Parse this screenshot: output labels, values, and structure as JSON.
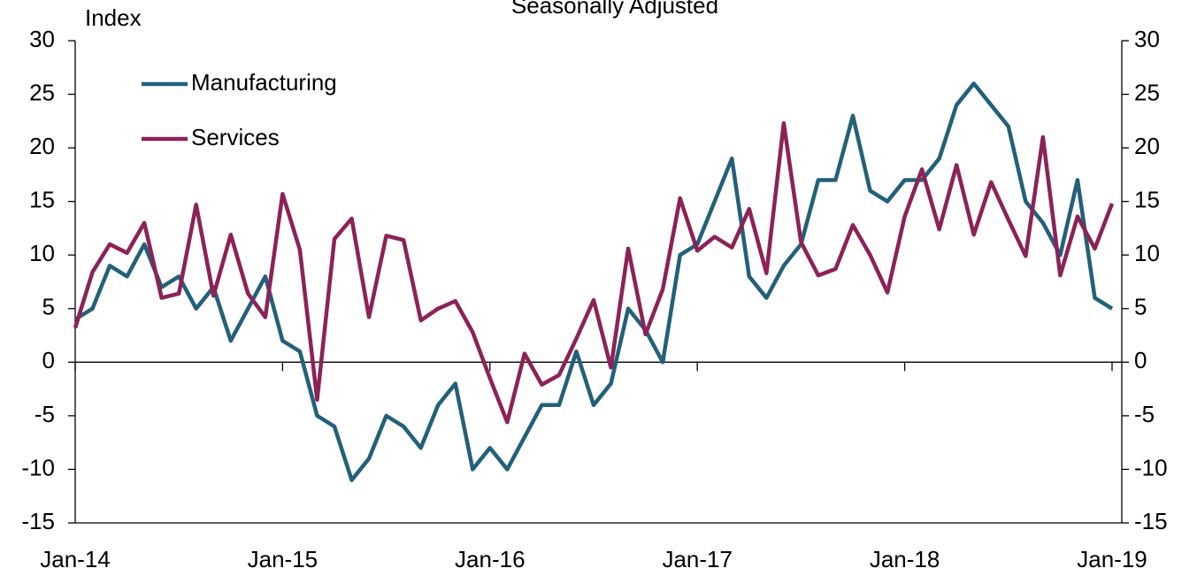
{
  "chart_data": {
    "type": "line",
    "subtitle": "Seasonally Adjusted",
    "y_label": "Index",
    "categories": [
      "Jan-14",
      null,
      null,
      null,
      null,
      null,
      null,
      null,
      null,
      null,
      null,
      null,
      "Jan-15",
      null,
      null,
      null,
      null,
      null,
      null,
      null,
      null,
      null,
      null,
      null,
      "Jan-16",
      null,
      null,
      null,
      null,
      null,
      null,
      null,
      null,
      null,
      null,
      null,
      "Jan-17",
      null,
      null,
      null,
      null,
      null,
      null,
      null,
      null,
      null,
      null,
      null,
      "Jan-18",
      null,
      null,
      null,
      null,
      null,
      null,
      null,
      null,
      null,
      null,
      null,
      "Jan-19"
    ],
    "series": [
      {
        "name": "Manufacturing",
        "color": "#23607a",
        "values": [
          4,
          5,
          9,
          8,
          11,
          7,
          8,
          5,
          7,
          2,
          5,
          8,
          2,
          1,
          -5,
          -6,
          -11,
          -9,
          -5,
          -6,
          -8,
          -4,
          -2,
          -10,
          -8,
          -10,
          -7,
          -4,
          -4,
          1,
          -4,
          -2,
          5,
          3,
          0,
          10,
          11,
          15,
          19,
          8,
          6,
          9,
          11,
          17,
          17,
          23,
          16,
          15,
          17,
          17,
          19,
          24,
          26,
          24,
          22,
          15,
          13,
          10,
          17,
          6,
          5
        ]
      },
      {
        "name": "Services",
        "color": "#8c2257",
        "values": [
          3.2,
          8.4,
          11,
          10.2,
          13,
          6,
          6.4,
          14.7,
          6.2,
          11.9,
          6.4,
          4.2,
          15.7,
          10.5,
          -3.5,
          11.5,
          13.4,
          4.2,
          11.8,
          11.4,
          3.9,
          5,
          5.7,
          2.8,
          -1.5,
          -5.6,
          0.8,
          -2.1,
          -1.2,
          2.2,
          5.8,
          -0.5,
          10.6,
          2.6,
          6.8,
          15.3,
          10.4,
          11.7,
          10.7,
          14.3,
          8.3,
          22.3,
          11.2,
          8.1,
          8.7,
          12.8,
          10,
          6.5,
          13.6,
          18,
          12.4,
          18.4,
          11.9,
          16.8,
          13.3,
          9.9,
          21,
          8.1,
          13.6,
          10.6,
          14.8
        ]
      }
    ],
    "ylim": [
      -15,
      30
    ],
    "yticks": [
      -15,
      -10,
      -5,
      0,
      5,
      10,
      15,
      20,
      25,
      30
    ],
    "y2lim": [
      -15,
      30
    ],
    "y2ticks": [
      -15,
      -10,
      -5,
      0,
      5,
      10,
      15,
      20,
      25,
      30
    ],
    "legend": "upper left"
  }
}
